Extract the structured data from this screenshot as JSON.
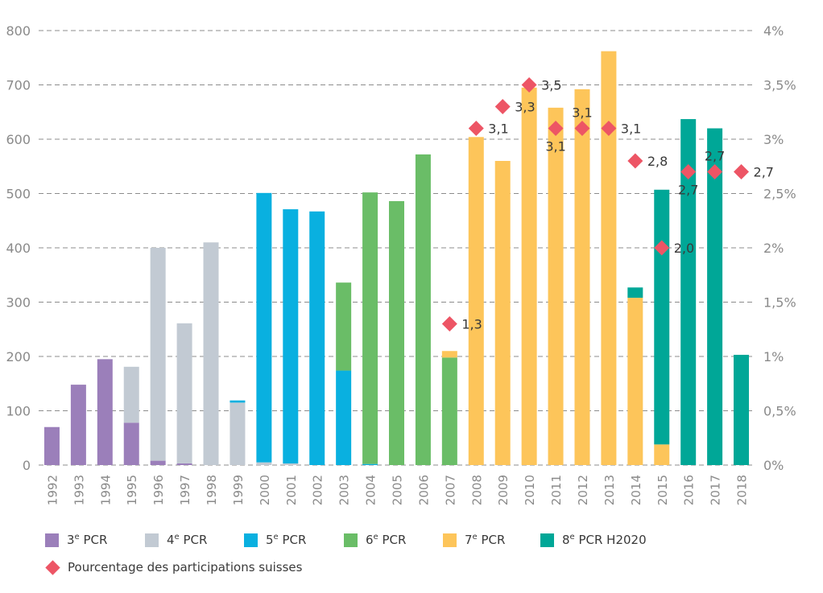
{
  "chart_data": {
    "type": "bar",
    "stacked": true,
    "categories": [
      "1992",
      "1993",
      "1994",
      "1995",
      "1996",
      "1997",
      "1998",
      "1999",
      "2000",
      "2001",
      "2002",
      "2003",
      "2004",
      "2005",
      "2006",
      "2007",
      "2008",
      "2009",
      "2010",
      "2011",
      "2012",
      "2013",
      "2014",
      "2015",
      "2016",
      "2017",
      "2018"
    ],
    "series": [
      {
        "name": "3e PCR",
        "label_main": "3",
        "label_sup": "e",
        "label_rest": " PCR",
        "color": "#9b7fba",
        "values": [
          70,
          148,
          195,
          78,
          8,
          3,
          0,
          0,
          0,
          0,
          0,
          0,
          0,
          0,
          0,
          0,
          0,
          0,
          0,
          0,
          0,
          0,
          0,
          0,
          0,
          0,
          0
        ]
      },
      {
        "name": "4e PCR",
        "label_main": "4",
        "label_sup": "e",
        "label_rest": " PCR",
        "color": "#c2cad3",
        "values": [
          0,
          0,
          0,
          103,
          392,
          258,
          410,
          115,
          5,
          3,
          0,
          0,
          0,
          0,
          0,
          0,
          0,
          0,
          0,
          0,
          0,
          0,
          0,
          0,
          0,
          0,
          0
        ]
      },
      {
        "name": "5e PCR",
        "label_main": "5",
        "label_sup": "e",
        "label_rest": " PCR",
        "color": "#09b0e0",
        "values": [
          0,
          0,
          0,
          0,
          0,
          0,
          0,
          4,
          496,
          468,
          467,
          174,
          2,
          0,
          0,
          0,
          0,
          0,
          0,
          0,
          0,
          0,
          0,
          0,
          0,
          0,
          0
        ]
      },
      {
        "name": "6e PCR",
        "label_main": "6",
        "label_sup": "e",
        "label_rest": " PCR",
        "color": "#6abd67",
        "values": [
          0,
          0,
          0,
          0,
          0,
          0,
          0,
          0,
          0,
          0,
          0,
          162,
          500,
          486,
          572,
          198,
          0,
          0,
          0,
          0,
          0,
          0,
          0,
          0,
          0,
          0,
          0
        ]
      },
      {
        "name": "7e PCR",
        "label_main": "7",
        "label_sup": "e",
        "label_rest": " PCR",
        "color": "#fdc55a",
        "values": [
          0,
          0,
          0,
          0,
          0,
          0,
          0,
          0,
          0,
          0,
          0,
          0,
          0,
          0,
          0,
          12,
          604,
          560,
          695,
          658,
          692,
          762,
          308,
          38,
          0,
          0,
          0
        ]
      },
      {
        "name": "8e PCR H2020",
        "label_main": "8",
        "label_sup": "e",
        "label_rest": " PCR H2020",
        "color": "#00a797",
        "values": [
          0,
          0,
          0,
          0,
          0,
          0,
          0,
          0,
          0,
          0,
          0,
          0,
          0,
          0,
          0,
          0,
          0,
          0,
          0,
          0,
          0,
          0,
          19,
          469,
          637,
          620,
          203
        ]
      }
    ],
    "line_series": {
      "name": "Pourcentage des participations suisses",
      "color": "#ed5565",
      "x": [
        "2007",
        "2008",
        "2009",
        "2010",
        "2011",
        "2012",
        "2013",
        "2014",
        "2015",
        "2016",
        "2017",
        "2018"
      ],
      "values": [
        1.3,
        3.1,
        3.3,
        3.5,
        3.1,
        3.1,
        3.1,
        2.8,
        2.0,
        2.7,
        2.7,
        2.7
      ],
      "labels": [
        "1,3",
        "3,1",
        "3,3",
        "3,5",
        "3,1",
        "3,1",
        "3,1",
        "2,8",
        "2,0",
        "2,7",
        "2,7",
        "2,7"
      ],
      "label_pos": [
        "right",
        "right",
        "right",
        "right",
        "below",
        "above",
        "right",
        "right",
        "right",
        "below",
        "above",
        "right"
      ]
    },
    "ylim": [
      0,
      800
    ],
    "yticks": [
      "0",
      "100",
      "200",
      "300",
      "400",
      "500",
      "600",
      "700",
      "800"
    ],
    "y2lim": [
      0,
      4
    ],
    "y2ticks": [
      "0%",
      "0,5%",
      "1%",
      "1,5%",
      "2%",
      "2,5%",
      "3%",
      "3,5%",
      "4%"
    ],
    "grid": true,
    "legend_position": "bottom"
  }
}
